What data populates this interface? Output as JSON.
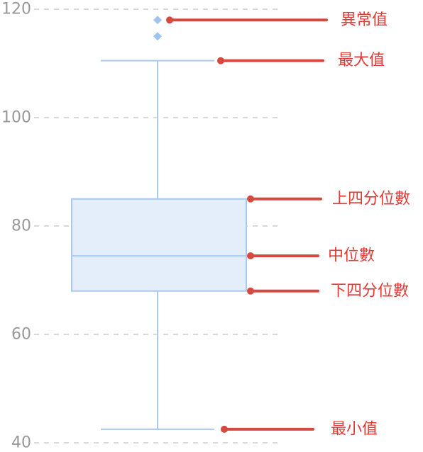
{
  "chart_data": {
    "type": "boxplot",
    "title": "",
    "xlabel": "",
    "ylabel": "",
    "ylim": [
      40,
      120
    ],
    "yticks": [
      40,
      60,
      80,
      100,
      120
    ],
    "grid": true,
    "box": {
      "min": 42.5,
      "q1": 68,
      "median": 74.5,
      "q3": 85,
      "max": 110.5,
      "outliers": [
        115,
        118
      ]
    },
    "annotations": [
      {
        "label": "異常值",
        "target": "outlier",
        "value": 118
      },
      {
        "label": "最大值",
        "target": "max",
        "value": 110.5
      },
      {
        "label": "上四分位數",
        "target": "q3",
        "value": 85
      },
      {
        "label": "中位數",
        "target": "median",
        "value": 74.5
      },
      {
        "label": "下四分位數",
        "target": "q1",
        "value": 68
      },
      {
        "label": "最小值",
        "target": "min",
        "value": 42.5
      }
    ],
    "colors": {
      "box_fill": "#e3eefa",
      "box_stroke": "#a9c9ee",
      "outlier": "#9ec4ee",
      "grid": "#cccccc",
      "tick_text": "#999999",
      "annotation": "#d6493f",
      "annotation_text": "#e53935"
    }
  }
}
